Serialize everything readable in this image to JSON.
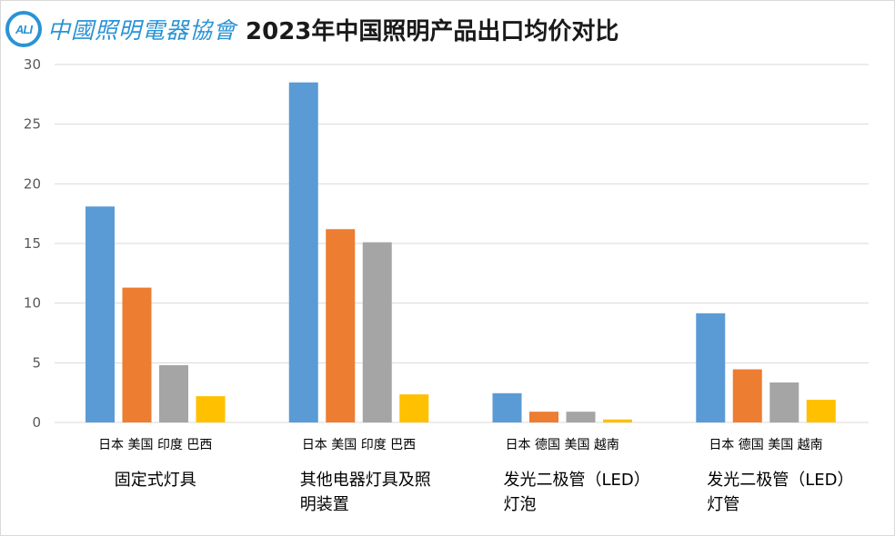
{
  "logo": {
    "badge": "ALI",
    "text": "中國照明電器協會",
    "color": "#2a93d5"
  },
  "chart_data": {
    "type": "bar",
    "title": "2023年中国照明产品出口均价对比",
    "ylim": [
      0,
      30
    ],
    "yticks": [
      0,
      5,
      10,
      15,
      20,
      25,
      30
    ],
    "grid": true,
    "colors": [
      "#5b9bd5",
      "#ed7d31",
      "#a5a5a5",
      "#ffc000"
    ],
    "groups": [
      {
        "name": "固定式灯具",
        "name_lines": [
          "固定式灯具"
        ],
        "countries": "日本 美国 印度 巴西",
        "values": [
          18.1,
          11.3,
          4.8,
          2.2
        ]
      },
      {
        "name": "其他电器灯具及照明装置",
        "name_lines": [
          "其他电器灯具及照",
          "明装置"
        ],
        "countries": "日本 美国 印度 巴西",
        "values": [
          28.5,
          16.2,
          15.1,
          2.35
        ]
      },
      {
        "name": "发光二极管（LED）灯泡",
        "name_lines": [
          "发光二极管（LED）",
          "灯泡"
        ],
        "countries": "日本 德国 美国 越南",
        "values": [
          2.45,
          0.9,
          0.9,
          0.25
        ]
      },
      {
        "name": "发光二极管（LED）灯管",
        "name_lines": [
          "发光二极管（LED）",
          "灯管"
        ],
        "countries": "日本 德国 美国 越南",
        "values": [
          9.15,
          4.45,
          3.35,
          1.9
        ]
      }
    ]
  }
}
